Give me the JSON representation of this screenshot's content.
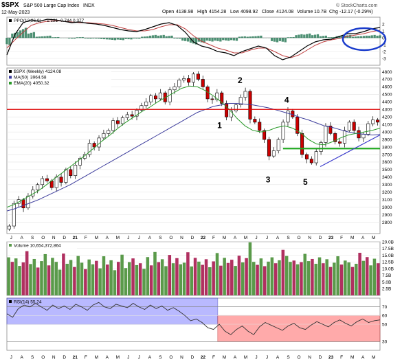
{
  "header": {
    "symbol": "$SPX",
    "name": "S&P 500 Large Cap Index",
    "exchange": "INDX",
    "date": "12-May-2023",
    "open_label": "Open",
    "open": "4138.98",
    "high_label": "High",
    "high": "4154.28",
    "low_label": "Low",
    "low": "4098.92",
    "close_label": "Close",
    "close": "4124.08",
    "vol_label": "Volume",
    "volume": "10.7B",
    "chg_label": "Chg",
    "change": "-12.17 (-0.29%)",
    "watermark": "© StockCharts.com"
  },
  "colors": {
    "up": "#ffffff",
    "down": "#cc0000",
    "candle_edge": "#000000",
    "ma50": "#3c3c9c",
    "ema20": "#2a9a2a",
    "resistance": "#dd0000",
    "support": "#22aa22",
    "trendline": "#3c3ccc",
    "ppo_line": "#000000",
    "ppo_signal": "#c04040",
    "ppo_hist": "#2e7d5b",
    "vol_up": "#5a9a4a",
    "vol_down": "#b03060",
    "rsi_line": "#333333",
    "rsi_blue": "#8080ff",
    "rsi_red": "#ff6666",
    "circle": "#1a3ccc"
  },
  "chart_data": [
    {
      "type": "histogram",
      "panel": "ppo",
      "title": "PPO(12,26,9) 1.121, 0.744, 0.377",
      "legend": [
        {
          "name": "PPO(12,26,9)",
          "value": "1.121"
        },
        {
          "name": "",
          "value": "0.744"
        },
        {
          "name": "",
          "value": "0.377"
        }
      ],
      "ylim": [
        -4,
        3
      ],
      "yticks": [
        2,
        1,
        0,
        -1,
        -2,
        -3
      ],
      "ppo": [
        -2.5,
        0.5,
        2.2,
        2.6,
        2.4,
        2.7,
        2.6,
        2.4,
        2.2,
        2.3,
        2.1,
        2.0,
        1.8,
        1.5,
        1.2,
        1.0,
        0.9,
        1.2,
        1.6,
        2.0,
        2.2,
        1.8,
        0.8,
        -0.6,
        -1.2,
        -1.5,
        -2.0,
        -2.2,
        -2.6,
        -2.0,
        -1.6,
        -1.2,
        -1.5,
        -2.6,
        -3.2,
        -2.8,
        -2.0,
        -1.2,
        -0.6,
        -0.3,
        -0.2,
        0.2,
        0.6,
        0.6,
        0.9,
        1.3,
        1.5
      ],
      "signal": [
        -1.5,
        -0.3,
        0.8,
        1.8,
        2.2,
        2.4,
        2.5,
        2.4,
        2.3,
        2.2,
        2.2,
        2.1,
        2.0,
        1.8,
        1.5,
        1.2,
        1.0,
        1.0,
        1.2,
        1.6,
        1.9,
        1.9,
        1.3,
        0.3,
        -0.5,
        -1.0,
        -1.5,
        -1.8,
        -2.2,
        -2.2,
        -1.8,
        -1.5,
        -1.5,
        -2.0,
        -2.6,
        -2.9,
        -2.5,
        -1.8,
        -1.1,
        -0.6,
        -0.3,
        -0.1,
        0.2,
        0.4,
        0.6,
        0.9,
        1.1
      ]
    },
    {
      "type": "candlestick",
      "panel": "price",
      "title": "$SPX (Weekly) 4124.08",
      "legend": [
        {
          "name": "MA(50)",
          "value": "3964.58"
        },
        {
          "name": "EMA(20)",
          "value": "4050.32"
        }
      ],
      "ylim": [
        2650,
        4850
      ],
      "yticks": [
        4800,
        4700,
        4600,
        4500,
        4400,
        4300,
        4200,
        4100,
        4000,
        3900,
        3800,
        3700,
        3600,
        3500,
        3400,
        3300,
        3200,
        3100,
        3000,
        2900,
        2800
      ],
      "resistance": 4300,
      "support": 3780,
      "trendline": [
        [
          0.84,
          3540
        ],
        [
          1.0,
          3960
        ]
      ],
      "closes": [
        2750,
        3050,
        3100,
        2990,
        3150,
        3230,
        3300,
        3380,
        3350,
        3260,
        3400,
        3330,
        3500,
        3420,
        3560,
        3650,
        3700,
        3850,
        3800,
        3920,
        3980,
        4020,
        4150,
        4110,
        4190,
        4230,
        4210,
        4290,
        4350,
        4400,
        4480,
        4440,
        4520,
        4400,
        4560,
        4600,
        4690,
        4710,
        4660,
        4770,
        4700,
        4600,
        4440,
        4430,
        4520,
        4380,
        4200,
        4280,
        4360,
        4460,
        4540,
        4170,
        4130,
        4020,
        3900,
        3680,
        3750,
        3900,
        4130,
        4280,
        4200,
        3980,
        3700,
        3640,
        3590,
        3740,
        3860,
        4080,
        3980,
        3870,
        3850,
        4020,
        4130,
        4020,
        3920,
        3970,
        4110,
        4160,
        4130
      ],
      "ma50": [
        2950,
        2980,
        3020,
        3060,
        3100,
        3150,
        3200,
        3250,
        3300,
        3360,
        3420,
        3480,
        3540,
        3600,
        3660,
        3720,
        3780,
        3840,
        3900,
        3960,
        4020,
        4080,
        4140,
        4200,
        4260,
        4300,
        4340,
        4360,
        4380,
        4380,
        4370,
        4360,
        4340,
        4320,
        4290,
        4260,
        4230,
        4190,
        4160,
        4120,
        4080,
        4060,
        4030,
        4000,
        3980,
        3970,
        3960,
        3965
      ],
      "ema20": [
        3000,
        3040,
        3100,
        3160,
        3220,
        3300,
        3380,
        3460,
        3540,
        3620,
        3700,
        3790,
        3880,
        3960,
        4050,
        4130,
        4200,
        4270,
        4330,
        4400,
        4460,
        4520,
        4580,
        4610,
        4600,
        4550,
        4480,
        4400,
        4300,
        4180,
        4080,
        4020,
        4000,
        4020,
        4060,
        4080,
        4050,
        3990,
        3900,
        3840,
        3830,
        3870,
        3920,
        3960,
        3980,
        4000,
        4020,
        4050
      ],
      "waves": [
        {
          "label": "1",
          "x": 0.57,
          "y": 4050
        },
        {
          "label": "2",
          "x": 0.625,
          "y": 4650
        },
        {
          "label": "3",
          "x": 0.7,
          "y": 3330
        },
        {
          "label": "4",
          "x": 0.75,
          "y": 4390
        },
        {
          "label": "5",
          "x": 0.8,
          "y": 3300
        }
      ]
    },
    {
      "type": "bar",
      "panel": "volume",
      "title": "Volume 10,654,372,864",
      "ylim": [
        0,
        20.0
      ],
      "yticks": [
        "20.0B",
        "17.5B",
        "15.0B",
        "12.5B",
        "10.0B",
        "7.5B",
        "5.0B",
        "2.5B"
      ],
      "values": [
        14.2,
        12.5,
        13.8,
        11.0,
        12.3,
        16.5,
        11.7,
        13.6,
        10.4,
        12.8,
        15.4,
        11.2,
        14.0,
        12.5,
        9.6,
        15.6,
        11.8,
        13.2,
        10.6,
        14.7,
        12.2,
        9.8,
        13.4,
        11.6,
        12.9,
        10.1,
        14.6,
        11.5,
        13.1,
        9.4,
        12.5,
        15.2,
        10.2,
        12.4,
        13.8,
        11.3,
        12.0,
        9.9,
        14.3,
        11.2,
        16.2,
        12.4,
        13.5,
        10.9,
        15.1,
        12.0,
        13.9,
        11.6,
        12.2,
        16.1,
        10.8,
        14.0,
        12.6,
        11.4,
        13.5,
        10.5,
        12.7,
        15.8,
        11.1,
        14.0,
        12.1,
        13.3,
        11.0,
        14.8,
        12.3,
        13.9,
        19.8,
        12.5,
        11.4,
        13.8,
        10.9,
        12.6,
        14.2,
        12.0,
        13.1,
        17.0,
        14.7,
        12.5,
        13.0,
        11.6,
        12.4,
        15.5,
        12.8,
        13.6,
        11.8,
        14.2,
        12.0,
        13.5,
        10.6,
        12.2,
        14.6,
        11.5,
        13.0,
        12.3,
        10.6,
        11.8,
        15.9,
        12.9,
        14.3,
        11.2,
        13.7,
        12.0
      ],
      "up": [
        1,
        0,
        1,
        1,
        0,
        0,
        1,
        1,
        0,
        1,
        1,
        0,
        1,
        1,
        1,
        0,
        1,
        1,
        0,
        1,
        1,
        0,
        1,
        1,
        0,
        1,
        1,
        0,
        1,
        1,
        0,
        1,
        1,
        1,
        0,
        1,
        0,
        1,
        1,
        0,
        1,
        0,
        1,
        1,
        0,
        1,
        0,
        1,
        1,
        0,
        1,
        0,
        1,
        0,
        0,
        1,
        0,
        1,
        0,
        1,
        0,
        0,
        1,
        0,
        1,
        0,
        1,
        1,
        0,
        1,
        0,
        1,
        1,
        0,
        1,
        0,
        1,
        1,
        0,
        1,
        0,
        1,
        1,
        0,
        1,
        1,
        0,
        1,
        0,
        1,
        1,
        0,
        1,
        1,
        0,
        1,
        0,
        1,
        0,
        1,
        1,
        0
      ]
    },
    {
      "type": "line",
      "panel": "rsi",
      "title": "RSI(14) 55.24",
      "ylim": [
        20,
        80
      ],
      "yticks": [
        70,
        60,
        50,
        30
      ],
      "zones": [
        {
          "from": 0.0,
          "to": 0.565,
          "low": 50,
          "high": 80,
          "color": "blue"
        },
        {
          "from": 0.565,
          "to": 1.0,
          "low": 30,
          "high": 60,
          "color": "red"
        }
      ],
      "values": [
        62,
        58,
        68,
        72,
        70,
        74,
        70,
        66,
        72,
        68,
        71,
        67,
        73,
        70,
        66,
        72,
        75,
        70,
        68,
        73,
        71,
        69,
        74,
        70,
        67,
        72,
        68,
        71,
        66,
        69,
        65,
        60,
        54,
        56,
        52,
        46,
        44,
        50,
        42,
        38,
        44,
        48,
        42,
        38,
        47,
        52,
        49,
        46,
        43,
        48,
        51,
        46,
        44,
        49,
        53,
        50,
        47,
        52,
        55,
        51,
        48,
        53,
        56,
        52,
        54,
        55
      ]
    }
  ],
  "x_axis": {
    "labels": [
      "J",
      "A",
      "S",
      "O",
      "N",
      "D",
      "21",
      "F",
      "M",
      "A",
      "M",
      "J",
      "J",
      "A",
      "S",
      "O",
      "N",
      "D",
      "22",
      "F",
      "M",
      "A",
      "M",
      "J",
      "J",
      "A",
      "S",
      "O",
      "N",
      "D",
      "23",
      "F",
      "M",
      "A",
      "M"
    ],
    "bold": [
      6,
      18,
      30
    ]
  }
}
